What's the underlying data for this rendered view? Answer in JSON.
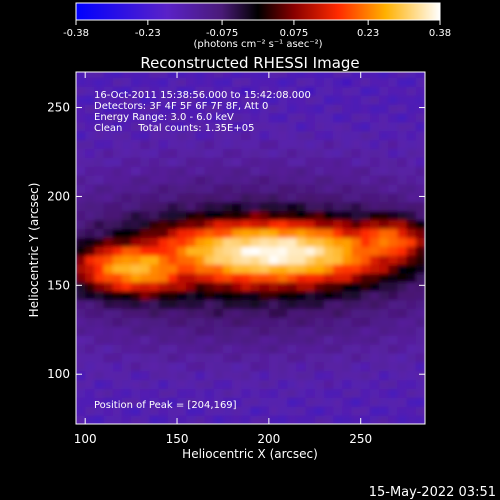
{
  "colorbar": {
    "ticks": [
      "-0.38",
      "-0.23",
      "-0.075",
      "0.075",
      "0.23",
      "0.38"
    ],
    "unit_label": "(photons cm⁻² s⁻¹ asec⁻²)",
    "range": [
      -0.38,
      0.38
    ]
  },
  "chart_data": {
    "type": "heatmap",
    "title": "Reconstructed RHESSI Image",
    "xlabel": "Heliocentric X (arcsec)",
    "ylabel": "Heliocentric Y (arcsec)",
    "xlim": [
      95,
      285
    ],
    "ylim": [
      72,
      270
    ],
    "xticks": [
      100,
      150,
      200,
      250
    ],
    "yticks": [
      100,
      150,
      200,
      250
    ],
    "annotations": [
      "16-Oct-2011 15:38:56.000 to 15:42:08.000",
      "Detectors: 3F 4F 5F 6F 7F 8F, Att 0",
      "Energy Range: 3.0 - 6.0 keV",
      "Clean     Total counts: 1.35E+05"
    ],
    "peak_label": "Position of Peak = [204,169]",
    "peak": [
      204,
      169
    ],
    "colormap": "blue-purple-black-red-yellow-white"
  },
  "footer": {
    "date": "15-May-2022 03:51"
  }
}
